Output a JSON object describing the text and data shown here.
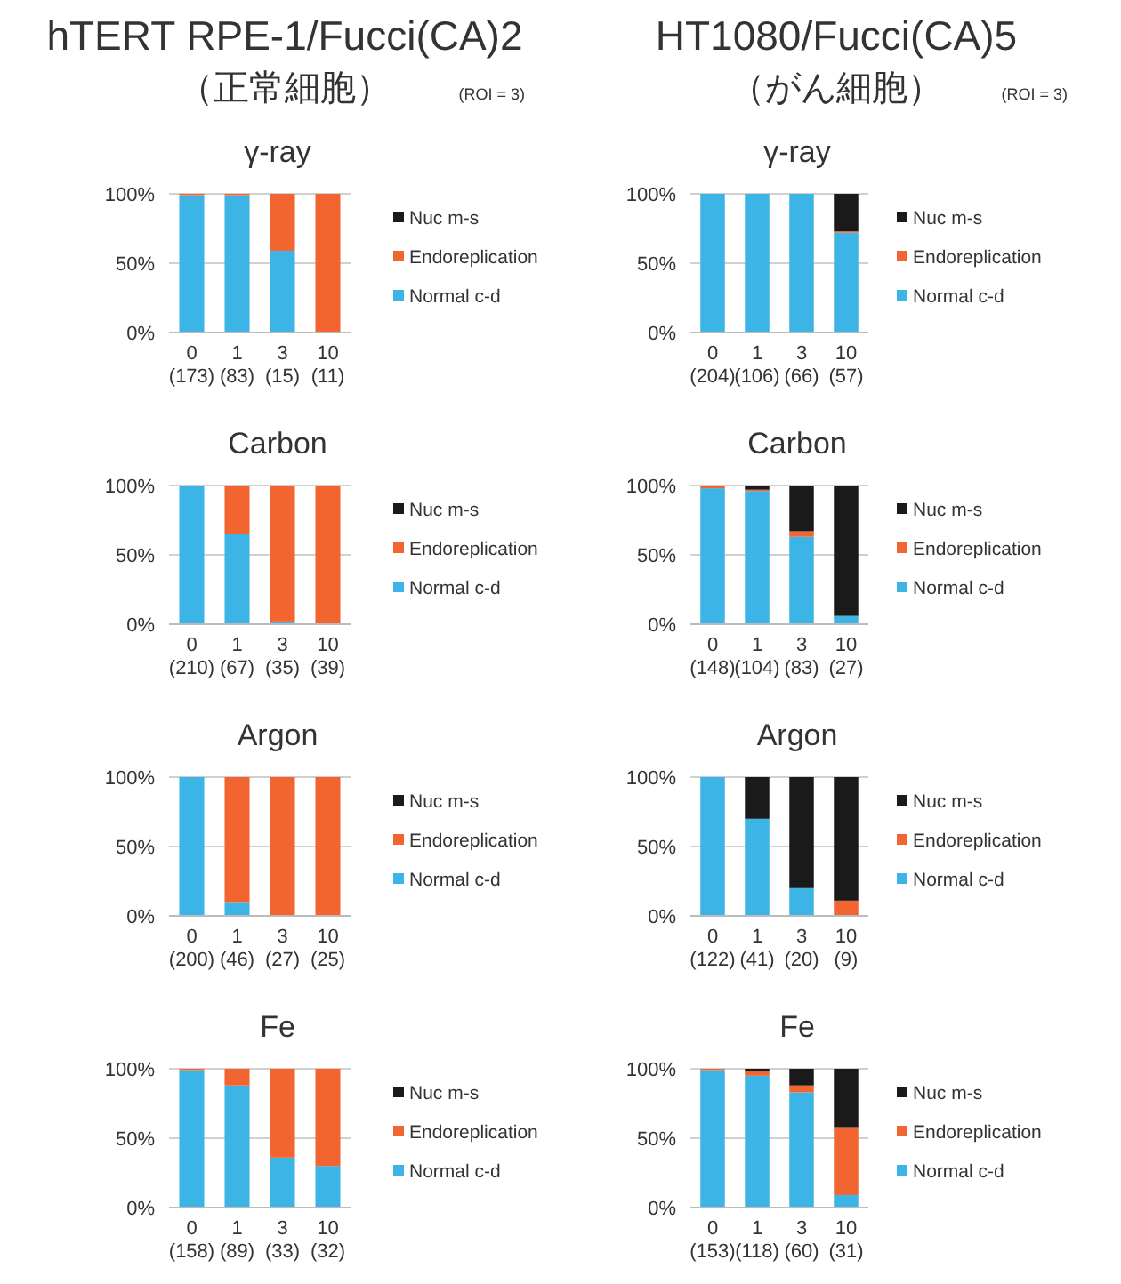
{
  "chart_data": [
    {
      "type": "bar",
      "stacked": true,
      "title": "γ-ray",
      "annotations": [
        "hTERT  RPE-1/Fucci(CA)2",
        "（正常細胞）",
        "(ROI = 3)"
      ],
      "categories": [
        "0\n(173)",
        "1\n(83)",
        "3\n(15)",
        "10\n(11)"
      ],
      "ylim": [
        0,
        100
      ],
      "yticks": [
        {
          "value": 0,
          "label": "0%"
        },
        {
          "value": 50,
          "label": "50%"
        },
        {
          "value": 100,
          "label": "100%"
        }
      ],
      "grid": "y",
      "legend": "right",
      "series": [
        {
          "name": "Normal c-d",
          "color": "#3cb4e6",
          "values": [
            99,
            99,
            59,
            0
          ]
        },
        {
          "name": "Endoreplication",
          "color": "#f26430",
          "values": [
            1,
            1,
            41,
            100
          ]
        },
        {
          "name": "Nuc m-s",
          "color": "#1a1a1a",
          "values": [
            0,
            0,
            0,
            0
          ]
        }
      ]
    },
    {
      "type": "bar",
      "stacked": true,
      "title": "γ-ray",
      "annotations": [
        "HT1080/Fucci(CA)5",
        "（がん細胞）",
        "(ROI = 3)"
      ],
      "categories": [
        "0\n(204)",
        "1\n(106)",
        "3\n(66)",
        "10\n(57)"
      ],
      "ylim": [
        0,
        100
      ],
      "yticks": [
        {
          "value": 0,
          "label": "0%"
        },
        {
          "value": 50,
          "label": "50%"
        },
        {
          "value": 100,
          "label": "100%"
        }
      ],
      "grid": "y",
      "legend": "right",
      "series": [
        {
          "name": "Normal c-d",
          "color": "#3cb4e6",
          "values": [
            100,
            100,
            100,
            72
          ]
        },
        {
          "name": "Endoreplication",
          "color": "#f26430",
          "values": [
            0,
            0,
            0,
            1
          ]
        },
        {
          "name": "Nuc m-s",
          "color": "#1a1a1a",
          "values": [
            0,
            0,
            0,
            27
          ]
        }
      ]
    },
    {
      "type": "bar",
      "stacked": true,
      "title": "Carbon",
      "categories": [
        "0\n(210)",
        "1\n(67)",
        "3\n(35)",
        "10\n(39)"
      ],
      "ylim": [
        0,
        100
      ],
      "yticks": [
        {
          "value": 0,
          "label": "0%"
        },
        {
          "value": 50,
          "label": "50%"
        },
        {
          "value": 100,
          "label": "100%"
        }
      ],
      "grid": "y",
      "legend": "right",
      "series": [
        {
          "name": "Normal c-d",
          "color": "#3cb4e6",
          "values": [
            100,
            65,
            2,
            0
          ]
        },
        {
          "name": "Endoreplication",
          "color": "#f26430",
          "values": [
            0,
            35,
            98,
            100
          ]
        },
        {
          "name": "Nuc m-s",
          "color": "#1a1a1a",
          "values": [
            0,
            0,
            0,
            0
          ]
        }
      ]
    },
    {
      "type": "bar",
      "stacked": true,
      "title": "Carbon",
      "categories": [
        "0\n(148)",
        "1\n(104)",
        "3\n(83)",
        "10\n(27)"
      ],
      "ylim": [
        0,
        100
      ],
      "yticks": [
        {
          "value": 0,
          "label": "0%"
        },
        {
          "value": 50,
          "label": "50%"
        },
        {
          "value": 100,
          "label": "100%"
        }
      ],
      "grid": "y",
      "legend": "right",
      "series": [
        {
          "name": "Normal c-d",
          "color": "#3cb4e6",
          "values": [
            98,
            96,
            63,
            6
          ]
        },
        {
          "name": "Endoreplication",
          "color": "#f26430",
          "values": [
            2,
            1,
            4,
            0
          ]
        },
        {
          "name": "Nuc m-s",
          "color": "#1a1a1a",
          "values": [
            0,
            3,
            33,
            94
          ]
        }
      ]
    },
    {
      "type": "bar",
      "stacked": true,
      "title": "Argon",
      "categories": [
        "0\n(200)",
        "1\n(46)",
        "3\n(27)",
        "10\n(25)"
      ],
      "ylim": [
        0,
        100
      ],
      "yticks": [
        {
          "value": 0,
          "label": "0%"
        },
        {
          "value": 50,
          "label": "50%"
        },
        {
          "value": 100,
          "label": "100%"
        }
      ],
      "grid": "y",
      "legend": "right",
      "series": [
        {
          "name": "Normal c-d",
          "color": "#3cb4e6",
          "values": [
            100,
            10,
            0,
            0
          ]
        },
        {
          "name": "Endoreplication",
          "color": "#f26430",
          "values": [
            0,
            90,
            100,
            100
          ]
        },
        {
          "name": "Nuc m-s",
          "color": "#1a1a1a",
          "values": [
            0,
            0,
            0,
            0
          ]
        }
      ]
    },
    {
      "type": "bar",
      "stacked": true,
      "title": "Argon",
      "categories": [
        "0\n(122)",
        "1\n(41)",
        "3\n(20)",
        "10\n(9)"
      ],
      "ylim": [
        0,
        100
      ],
      "yticks": [
        {
          "value": 0,
          "label": "0%"
        },
        {
          "value": 50,
          "label": "50%"
        },
        {
          "value": 100,
          "label": "100%"
        }
      ],
      "grid": "y",
      "legend": "right",
      "series": [
        {
          "name": "Normal c-d",
          "color": "#3cb4e6",
          "values": [
            100,
            70,
            20,
            0
          ]
        },
        {
          "name": "Endoreplication",
          "color": "#f26430",
          "values": [
            0,
            0,
            0,
            11
          ]
        },
        {
          "name": "Nuc m-s",
          "color": "#1a1a1a",
          "values": [
            0,
            30,
            80,
            89
          ]
        }
      ]
    },
    {
      "type": "bar",
      "stacked": true,
      "title": "Fe",
      "categories": [
        "0\n(158)",
        "1\n(89)",
        "3\n(33)",
        "10\n(32)"
      ],
      "ylim": [
        0,
        100
      ],
      "yticks": [
        {
          "value": 0,
          "label": "0%"
        },
        {
          "value": 50,
          "label": "50%"
        },
        {
          "value": 100,
          "label": "100%"
        }
      ],
      "grid": "y",
      "legend": "right",
      "series": [
        {
          "name": "Normal c-d",
          "color": "#3cb4e6",
          "values": [
            99,
            88,
            36,
            30
          ]
        },
        {
          "name": "Endoreplication",
          "color": "#f26430",
          "values": [
            1,
            12,
            64,
            70
          ]
        },
        {
          "name": "Nuc m-s",
          "color": "#1a1a1a",
          "values": [
            0,
            0,
            0,
            0
          ]
        }
      ]
    },
    {
      "type": "bar",
      "stacked": true,
      "title": "Fe",
      "categories": [
        "0\n(153)",
        "1\n(118)",
        "3\n(60)",
        "10\n(31)"
      ],
      "ylim": [
        0,
        100
      ],
      "yticks": [
        {
          "value": 0,
          "label": "0%"
        },
        {
          "value": 50,
          "label": "50%"
        },
        {
          "value": 100,
          "label": "100%"
        }
      ],
      "grid": "y",
      "legend": "right",
      "series": [
        {
          "name": "Normal c-d",
          "color": "#3cb4e6",
          "values": [
            99,
            95,
            83,
            9
          ]
        },
        {
          "name": "Endoreplication",
          "color": "#f26430",
          "values": [
            1,
            3,
            5,
            49
          ]
        },
        {
          "name": "Nuc m-s",
          "color": "#1a1a1a",
          "values": [
            0,
            2,
            12,
            42
          ]
        }
      ]
    }
  ]
}
